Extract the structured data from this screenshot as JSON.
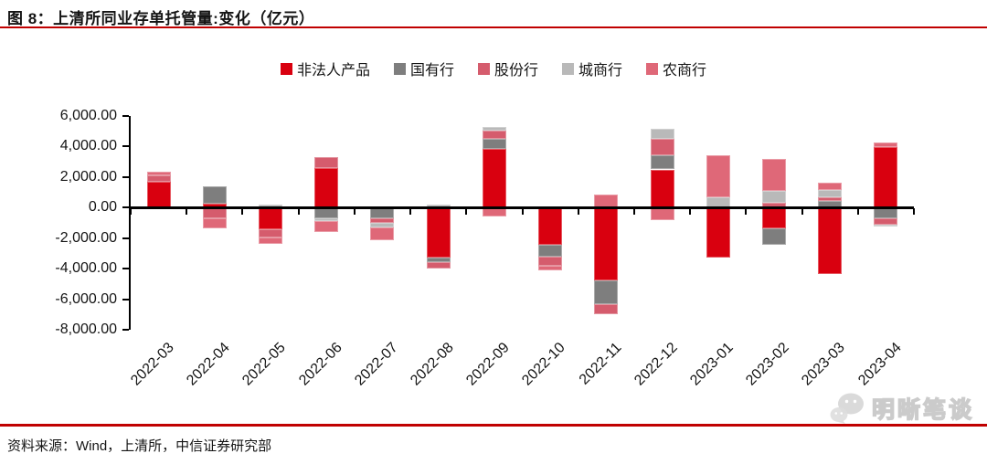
{
  "header": {
    "title": "图 8：上清所同业存单托管量:变化（亿元）"
  },
  "chart_data": {
    "type": "bar",
    "stacked": true,
    "title": "上清所同业存单托管量:变化（亿元）",
    "legend_position": "top",
    "grid": false,
    "ylim": [
      -8000,
      6000
    ],
    "ytick_step": 2000,
    "ytick_labels": [
      "6,000.00",
      "4,000.00",
      "2,000.00",
      "0.00",
      "-2,000.00",
      "-4,000.00",
      "-6,000.00",
      "-8,000.00"
    ],
    "categories": [
      "2022-03",
      "2022-04",
      "2022-05",
      "2022-06",
      "2022-07",
      "2022-08",
      "2022-09",
      "2022-10",
      "2022-11",
      "2022-12",
      "2023-01",
      "2023-02",
      "2023-03",
      "2023-04"
    ],
    "series": [
      {
        "name": "非法人产品",
        "color": "#d9000f",
        "values": [
          1720,
          260,
          -1400,
          2600,
          0,
          -3300,
          3840,
          -2460,
          -4760,
          2500,
          -3300,
          -1360,
          -4360,
          3940
        ]
      },
      {
        "name": "国有行",
        "color": "#7e7e7e",
        "values": [
          0,
          1120,
          0,
          -680,
          -680,
          -300,
          660,
          -740,
          -1540,
          940,
          0,
          -1100,
          460,
          -700
        ]
      },
      {
        "name": "股份行",
        "color": "#d55c6d",
        "values": [
          400,
          -680,
          -560,
          700,
          -300,
          -400,
          540,
          -600,
          -700,
          1060,
          0,
          300,
          220,
          -400
        ]
      },
      {
        "name": "城商行",
        "color": "#b9b9b9",
        "values": [
          0,
          0,
          200,
          -200,
          -340,
          200,
          260,
          0,
          0,
          640,
          680,
          800,
          480,
          -160
        ]
      },
      {
        "name": "农商行",
        "color": "#df6878",
        "values": [
          260,
          -700,
          -440,
          -740,
          -800,
          0,
          -560,
          -340,
          880,
          -840,
          2720,
          2080,
          500,
          340
        ]
      }
    ]
  },
  "footer": {
    "source": "资料来源：Wind，上清所，中信证券研究部"
  },
  "watermark": {
    "text": "明晰笔谈",
    "icon": "wechat-chat-bubbles-icon"
  }
}
